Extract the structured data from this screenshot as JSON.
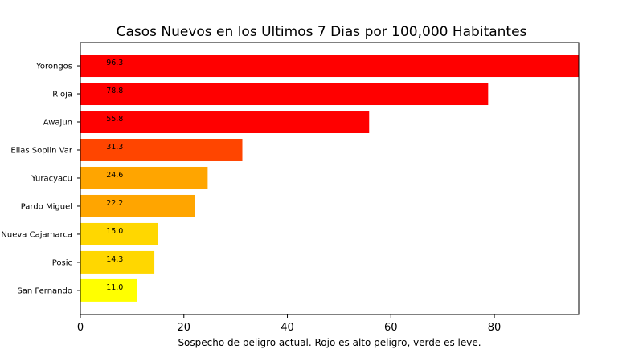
{
  "chart_data": {
    "type": "bar",
    "orientation": "horizontal",
    "title": "Casos Nuevos en los Ultimos 7 Dias por 100,000 Habitantes",
    "xlabel": "Sospecho de peligro actual. Rojo es alto peligro, verde es leve.",
    "ylabel": "",
    "categories": [
      "San Fernando",
      "Posic",
      "Nueva Cajamarca",
      "Pardo Miguel",
      "Yuracyacu",
      "Elias Soplin Var",
      "Awajun",
      "Rioja",
      "Yorongos"
    ],
    "values": [
      11.0,
      14.3,
      15.0,
      22.2,
      24.6,
      31.3,
      55.8,
      78.8,
      96.3
    ],
    "value_labels": [
      "11.0",
      "14.3",
      "15.0",
      "22.2",
      "24.6",
      "31.3",
      "55.8",
      "78.8",
      "96.3"
    ],
    "colors": [
      "#ffff00",
      "#ffd700",
      "#ffd700",
      "#ffa500",
      "#ffa500",
      "#ff4500",
      "#ff0000",
      "#ff0000",
      "#ff0000"
    ],
    "xticks": [
      0,
      20,
      40,
      60,
      80
    ],
    "xtick_labels": [
      "0",
      "20",
      "40",
      "60",
      "80"
    ],
    "xlim": [
      0,
      96.3
    ],
    "grid": false
  }
}
